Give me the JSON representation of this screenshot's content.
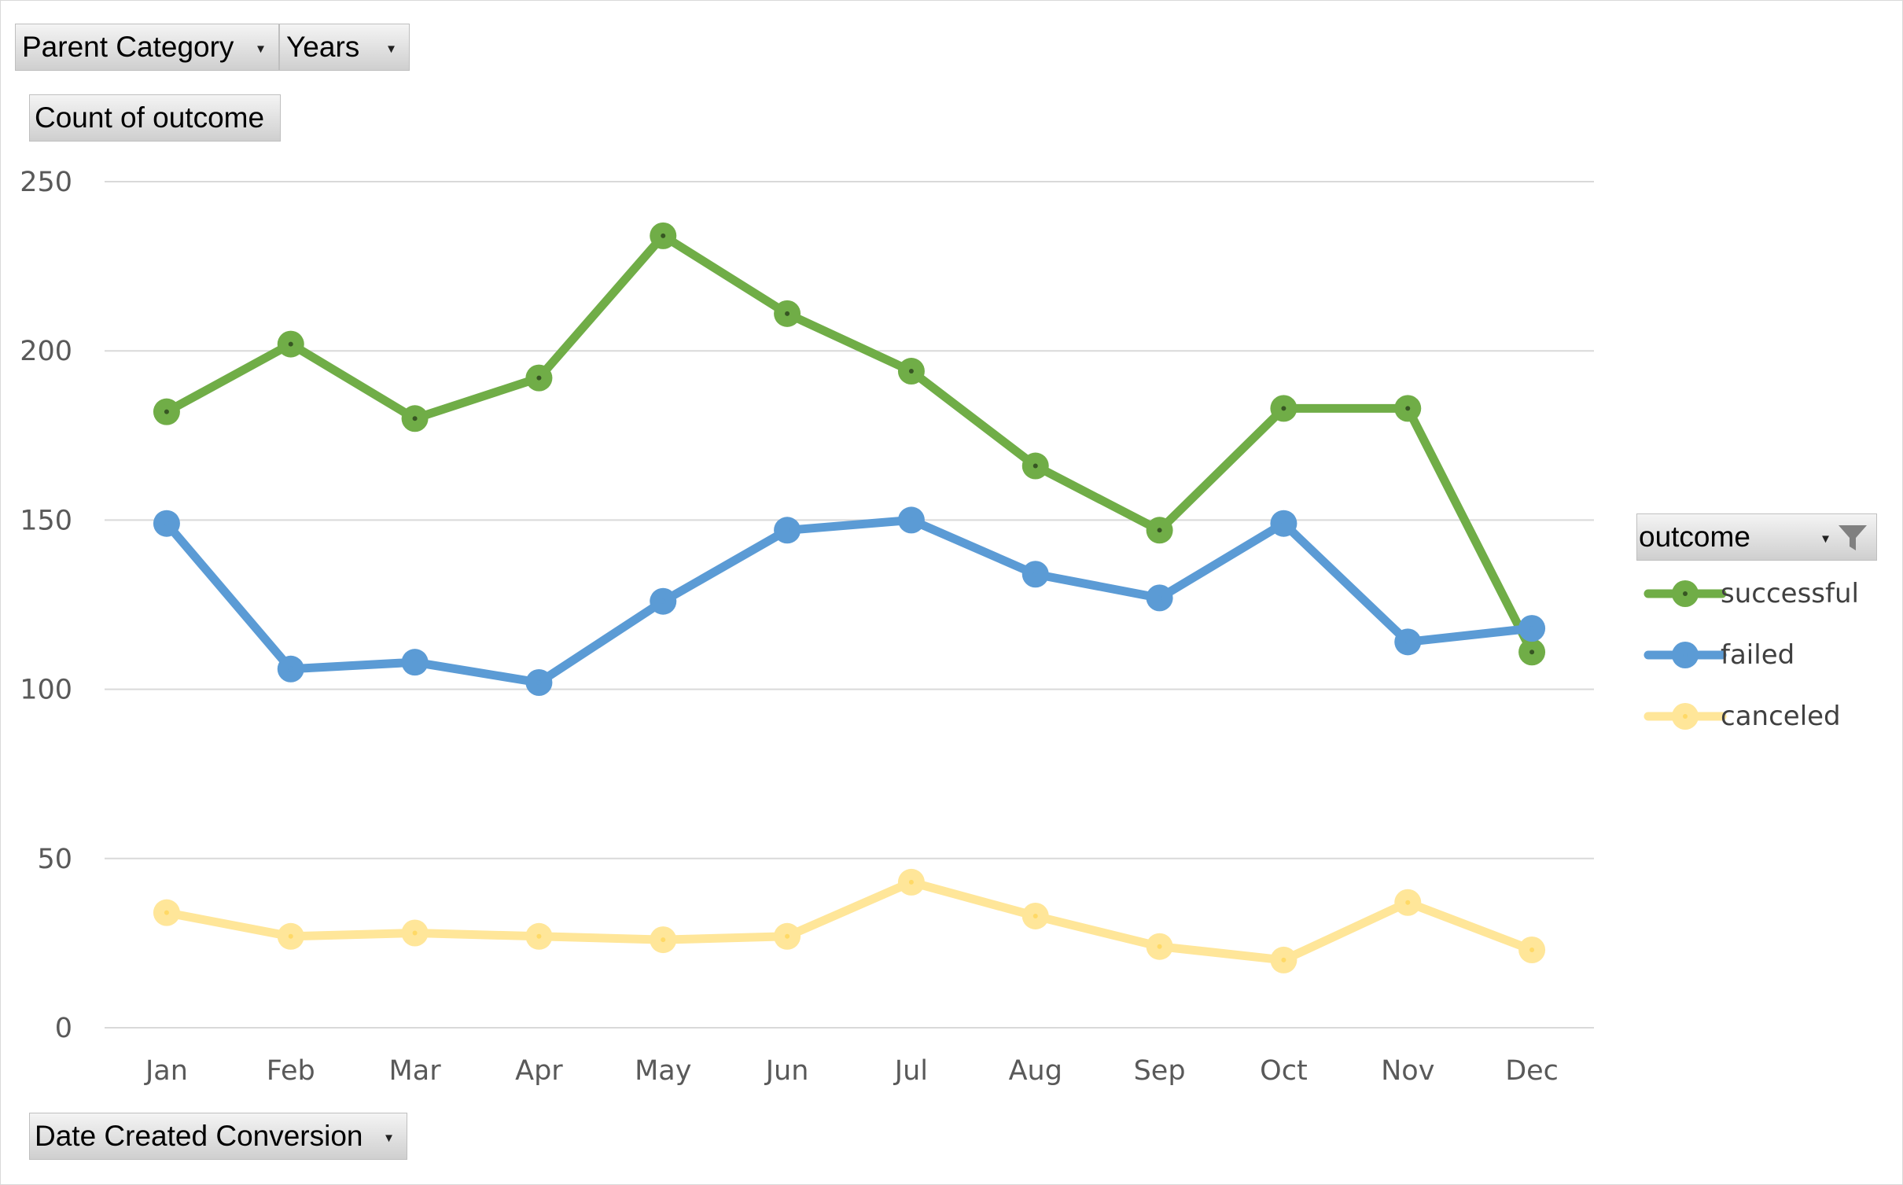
{
  "filters": {
    "parent_category_label": "Parent Category",
    "years_label": "Years",
    "values_label": "Count of outcome",
    "axis_field_label": "Date Created Conversion",
    "legend_field_label": "outcome"
  },
  "icons": {
    "dropdown": "chevron-down-icon",
    "filter": "filter-icon"
  },
  "chart_data": {
    "type": "line",
    "categories": [
      "Jan",
      "Feb",
      "Mar",
      "Apr",
      "May",
      "Jun",
      "Jul",
      "Aug",
      "Sep",
      "Oct",
      "Nov",
      "Dec"
    ],
    "ylim": [
      0,
      250
    ],
    "yticks": [
      0,
      50,
      100,
      150,
      200,
      250
    ],
    "grid": true,
    "legend_position": "right",
    "series": [
      {
        "name": "successful",
        "color": "#70ad47",
        "values": [
          182,
          202,
          180,
          192,
          234,
          211,
          194,
          166,
          147,
          183,
          183,
          111
        ]
      },
      {
        "name": "failed",
        "color": "#5b9bd5",
        "values": [
          149,
          106,
          108,
          102,
          126,
          147,
          150,
          134,
          127,
          149,
          114,
          118
        ]
      },
      {
        "name": "canceled",
        "color": "#ffe699",
        "values": [
          34,
          27,
          28,
          27,
          26,
          27,
          43,
          33,
          24,
          20,
          37,
          23
        ]
      }
    ]
  }
}
